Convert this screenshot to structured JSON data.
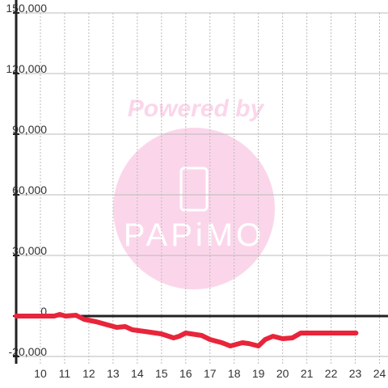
{
  "chart_data": {
    "type": "line",
    "watermark": {
      "line1": "Powered by",
      "line2": "PAPiMO"
    },
    "x": [
      9.0,
      10.57,
      10.8,
      11.04,
      11.47,
      11.8,
      12.3,
      13.15,
      13.5,
      13.8,
      14.3,
      14.99,
      15.5,
      15.73,
      16.0,
      16.66,
      17.0,
      17.5,
      17.84,
      18.34,
      18.6,
      19.0,
      19.28,
      19.6,
      20.0,
      20.4,
      20.75,
      23.03
    ],
    "series": [
      {
        "color": "#e8253a",
        "values": [
          0,
          0,
          800,
          0,
          400,
          -1600,
          -2800,
          -5600,
          -5200,
          -6800,
          -7600,
          -8800,
          -10800,
          -10000,
          -8400,
          -9600,
          -11600,
          -13200,
          -14800,
          -13200,
          -13600,
          -14800,
          -11600,
          -10000,
          -11200,
          -10800,
          -8400,
          -8400
        ]
      }
    ],
    "xlim": [
      9,
      24.35
    ],
    "xticks": [
      10,
      11,
      12,
      13,
      14,
      15,
      16,
      17,
      18,
      19,
      20,
      21,
      22,
      23,
      24
    ],
    "ylim": [
      -23600,
      150000
    ],
    "yticks": [
      {
        "value": -20000,
        "label": "-20,000"
      },
      0,
      {
        "value": 30000,
        "label": "30,000"
      },
      {
        "value": 60000,
        "label": "60,000"
      },
      {
        "value": 90000,
        "label": "90,000"
      },
      {
        "value": 120000,
        "label": "120,000"
      },
      {
        "value": 150000,
        "label": "150,000"
      }
    ],
    "grid": true
  }
}
